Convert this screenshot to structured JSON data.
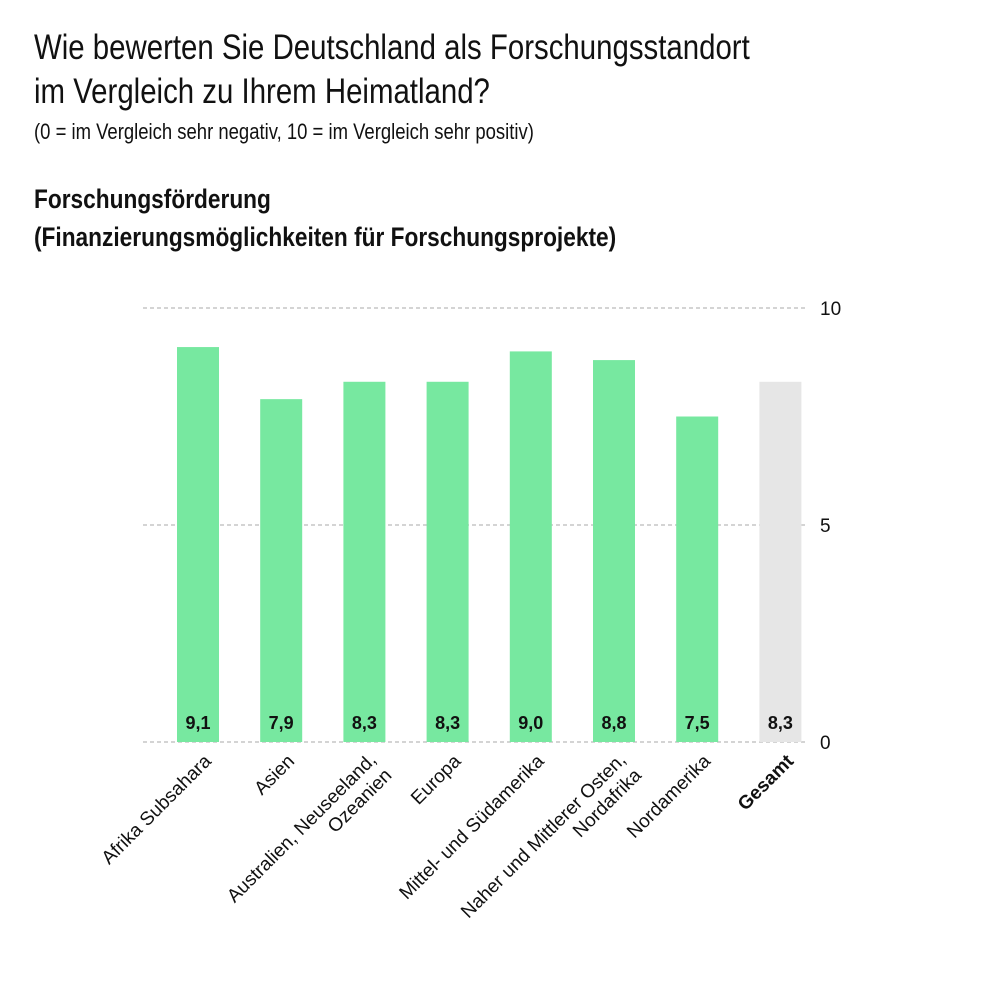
{
  "title": {
    "line1": "Wie bewerten Sie Deutschland als Forschungsstandort",
    "line2": "im Vergleich zu Ihrem Heimatland?",
    "subtitle": "(0 = im Vergleich sehr negativ, 10 = im Vergleich sehr positiv)"
  },
  "chart_data": {
    "type": "bar",
    "title": "Forschungsförderung",
    "subtitle": "(Finanzierungsmöglichkeiten für Forschungsprojekte)",
    "categories": [
      [
        "Afrika Subsahara"
      ],
      [
        "Asien"
      ],
      [
        "Australien, Neuseeland,",
        "Ozeanien"
      ],
      [
        "Europa"
      ],
      [
        "Mittel- und Südamerika"
      ],
      [
        "Naher und Mittlerer Osten,",
        "Nordafrika"
      ],
      [
        "Nordamerika"
      ],
      [
        "Gesamt"
      ]
    ],
    "values": [
      9.1,
      7.9,
      8.3,
      8.3,
      9.0,
      8.8,
      7.5,
      8.3
    ],
    "value_labels": [
      "9,1",
      "7,9",
      "8,3",
      "8,3",
      "9,0",
      "8,8",
      "7,5",
      "8,3"
    ],
    "highlight_total_index": 7,
    "ylim": [
      0,
      10
    ],
    "yticks": [
      0,
      5,
      10
    ],
    "ytick_labels": [
      "0",
      "5",
      "10"
    ],
    "grid": true,
    "colors": {
      "bar": "#77e8a0",
      "total": "#e6e6e6",
      "grid": "#aaaaaa"
    }
  }
}
